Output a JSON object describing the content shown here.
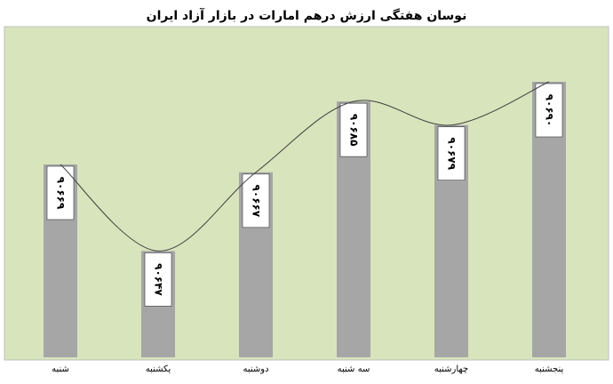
{
  "chart_data": {
    "type": "bar",
    "title": "نوسان هفتگی ارزش درهم امارات در بازار آزاد ایران",
    "categories": [
      "شنبه",
      "یکشنبه",
      "دوشنبه",
      "سه شنبه",
      "چهارشنبه",
      "پنجشنبه"
    ],
    "values": [
      90669,
      90647,
      90667,
      90685,
      90679,
      90690
    ],
    "value_labels": [
      "۹۰۶۶۹",
      "۹۰۶۴۷",
      "۹۰۶۶۷",
      "۹۰۶۸۵",
      "۹۰۶۷۹",
      "۹۰۶۹۰"
    ],
    "color": "#a6a6a6",
    "ylim": [
      90620,
      90704
    ]
  }
}
